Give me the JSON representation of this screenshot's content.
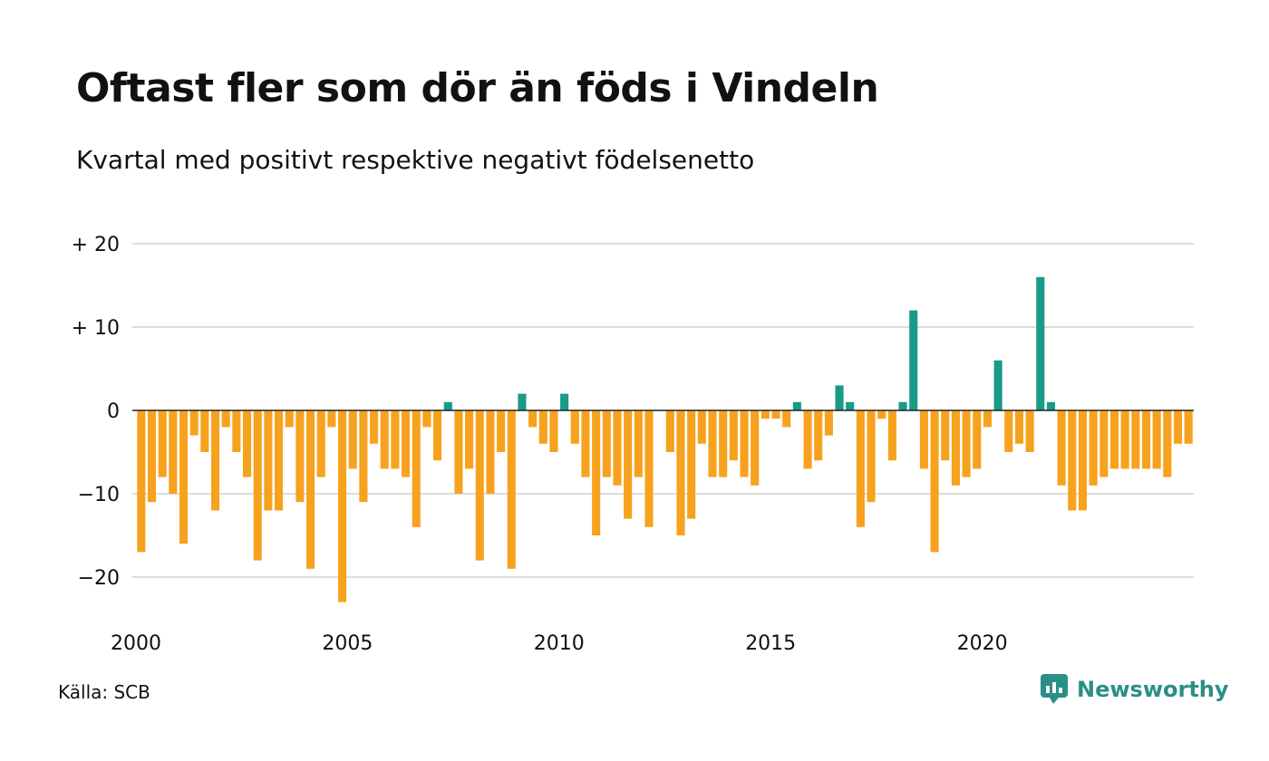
{
  "title": "Oftast fler som dör än föds i Vindeln",
  "subtitle": "Kvartal med positivt respektive negativt födelsenetto",
  "source": "Källa: SCB",
  "brand": "Newsworthy",
  "colors": {
    "positive": "#1a9a88",
    "negative": "#f7a21e",
    "grid": "#dddddd",
    "zero": "#222222",
    "brand": "#2a8f86"
  },
  "chart_data": {
    "type": "bar",
    "title": "Oftast fler som dör än föds i Vindeln",
    "subtitle": "Kvartal med positivt respektive negativt födelsenetto",
    "xlabel": "",
    "ylabel": "",
    "ylim": [
      -25,
      22
    ],
    "grid": true,
    "y_ticks": [
      {
        "value": 20,
        "label": "+ 20"
      },
      {
        "value": 10,
        "label": "+ 10"
      },
      {
        "value": 0,
        "label": "0"
      },
      {
        "value": -10,
        "label": "−10"
      },
      {
        "value": -20,
        "label": "−20"
      }
    ],
    "x_ticks": [
      {
        "value": 2000,
        "label": "2000"
      },
      {
        "value": 2005,
        "label": "2005"
      },
      {
        "value": 2010,
        "label": "2010"
      },
      {
        "value": 2015,
        "label": "2015"
      },
      {
        "value": 2020,
        "label": "2020"
      }
    ],
    "categories": [
      "2000 K1",
      "2000 K2",
      "2000 K3",
      "2000 K4",
      "2001 K1",
      "2001 K2",
      "2001 K3",
      "2001 K4",
      "2002 K1",
      "2002 K2",
      "2002 K3",
      "2002 K4",
      "2003 K1",
      "2003 K2",
      "2003 K3",
      "2003 K4",
      "2004 K1",
      "2004 K2",
      "2004 K3",
      "2004 K4",
      "2005 K1",
      "2005 K2",
      "2005 K3",
      "2005 K4",
      "2006 K1",
      "2006 K2",
      "2006 K3",
      "2006 K4",
      "2007 K1",
      "2007 K2",
      "2007 K3",
      "2007 K4",
      "2008 K1",
      "2008 K2",
      "2008 K3",
      "2008 K4",
      "2009 K1",
      "2009 K2",
      "2009 K3",
      "2009 K4",
      "2010 K1",
      "2010 K2",
      "2010 K3",
      "2010 K4",
      "2011 K1",
      "2011 K2",
      "2011 K3",
      "2011 K4",
      "2012 K1",
      "2012 K2",
      "2012 K3",
      "2012 K4",
      "2013 K1",
      "2013 K2",
      "2013 K3",
      "2013 K4",
      "2014 K1",
      "2014 K2",
      "2014 K3",
      "2014 K4",
      "2015 K1",
      "2015 K2",
      "2015 K3",
      "2015 K4",
      "2016 K1",
      "2016 K2",
      "2016 K3",
      "2016 K4",
      "2017 K1",
      "2017 K2",
      "2017 K3",
      "2017 K4",
      "2018 K1",
      "2018 K2",
      "2018 K3",
      "2018 K4",
      "2019 K1",
      "2019 K2",
      "2019 K3",
      "2019 K4",
      "2020 K1",
      "2020 K2",
      "2020 K3",
      "2020 K4",
      "2021 K1",
      "2021 K2",
      "2021 K3",
      "2021 K4",
      "2022 K1",
      "2022 K2",
      "2022 K3",
      "2022 K4",
      "2023 K1",
      "2023 K2",
      "2023 K3",
      "2023 K4",
      "2024 K1",
      "2024 K2",
      "2024 K3",
      "2024 K4"
    ],
    "values": [
      -17,
      -11,
      -8,
      -10,
      -16,
      -3,
      -5,
      -12,
      -2,
      -5,
      -8,
      -18,
      -12,
      -12,
      -2,
      -11,
      -19,
      -8,
      -2,
      -23,
      -7,
      -11,
      -4,
      -7,
      -7,
      -8,
      -14,
      -2,
      -6,
      1,
      -10,
      -7,
      -18,
      -10,
      -5,
      -19,
      2,
      -2,
      -4,
      -5,
      2,
      -4,
      -8,
      -15,
      -8,
      -9,
      -13,
      -8,
      -14,
      0,
      -5,
      -15,
      -13,
      -4,
      -8,
      -8,
      -6,
      -8,
      -9,
      -1,
      -1,
      -2,
      1,
      -7,
      -6,
      -3,
      3,
      1,
      -14,
      -11,
      -1,
      -6,
      1,
      12,
      -7,
      -17,
      -6,
      -9,
      -8,
      -7,
      -2,
      6,
      -5,
      -4,
      -5,
      16,
      1,
      -9,
      -12,
      -12,
      -9,
      -8,
      -7,
      -7,
      -7,
      -7,
      -7,
      -8,
      -4,
      -4
    ]
  }
}
